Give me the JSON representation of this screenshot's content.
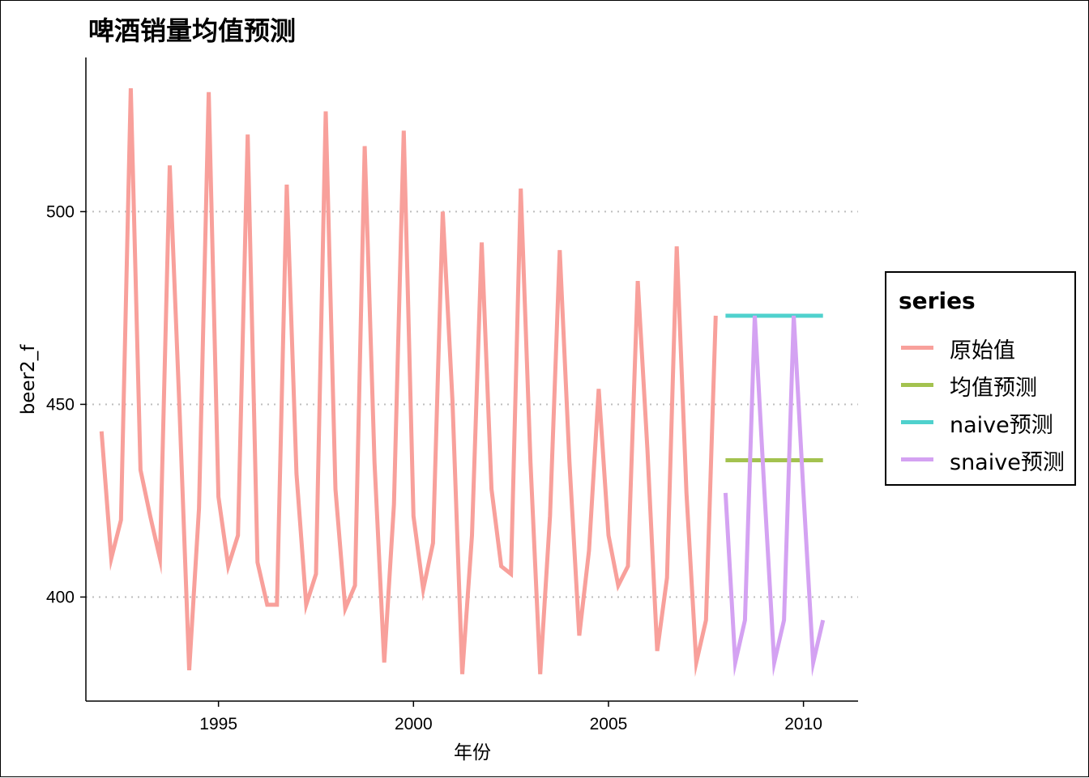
{
  "chart_data": {
    "type": "line",
    "title": "啤酒销量均值预测",
    "xlabel": "年份",
    "ylabel": "beer2_f",
    "xlim": [
      1991.6,
      2011.4
    ],
    "ylim": [
      373,
      540
    ],
    "x_ticks": [
      1995,
      2000,
      2005,
      2010
    ],
    "y_ticks": [
      400,
      450,
      500
    ],
    "grid": "horizontal dotted",
    "legend_position": "right",
    "legend_title": "series",
    "series": [
      {
        "name": "原始值",
        "color": "#F8A09B",
        "start": 1992.0,
        "step": 0.25,
        "values": [
          443,
          410,
          420,
          532,
          433,
          421,
          410,
          512,
          449,
          381,
          423,
          531,
          426,
          408,
          416,
          520,
          409,
          398,
          398,
          507,
          432,
          398,
          406,
          526,
          428,
          397,
          403,
          517,
          435,
          383,
          424,
          521,
          421,
          402,
          414,
          500,
          451,
          380,
          416,
          492,
          428,
          408,
          406,
          506,
          435,
          380,
          421,
          490,
          435,
          390,
          412,
          454,
          416,
          403,
          408,
          482,
          438,
          386,
          405,
          491,
          427,
          383,
          394,
          473
        ]
      },
      {
        "name": "均值预测",
        "color": "#A3C24F",
        "x": [
          2008.0,
          2010.5
        ],
        "values": [
          435.5,
          435.5
        ]
      },
      {
        "name": "naive预测",
        "color": "#4FD1CD",
        "x": [
          2008.0,
          2010.5
        ],
        "values": [
          473,
          473
        ]
      },
      {
        "name": "snaive预测",
        "color": "#D4A2F2",
        "start": 2008.0,
        "step": 0.25,
        "values": [
          427,
          383,
          394,
          473,
          427,
          383,
          394,
          473,
          427,
          383,
          394
        ]
      }
    ]
  }
}
